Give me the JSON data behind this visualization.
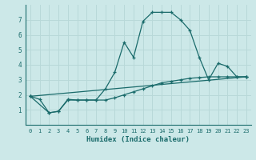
{
  "xlabel": "Humidex (Indice chaleur)",
  "background_color": "#cce8e8",
  "grid_color": "#b8d8d8",
  "line_color": "#1a6b6b",
  "xlim": [
    -0.5,
    23.5
  ],
  "ylim": [
    0,
    8
  ],
  "xtick_labels": [
    "0",
    "1",
    "2",
    "3",
    "4",
    "5",
    "6",
    "7",
    "8",
    "9",
    "10",
    "11",
    "12",
    "13",
    "14",
    "15",
    "16",
    "17",
    "18",
    "19",
    "20",
    "21",
    "22",
    "23"
  ],
  "yticks": [
    1,
    2,
    3,
    4,
    5,
    6,
    7
  ],
  "line1_x": [
    0,
    1,
    2,
    3,
    4,
    5,
    6,
    7,
    8,
    9,
    10,
    11,
    12,
    13,
    14,
    15,
    16,
    17,
    18,
    19,
    20,
    21,
    22,
    23
  ],
  "line1_y": [
    1.9,
    1.7,
    0.8,
    0.9,
    1.7,
    1.65,
    1.65,
    1.65,
    2.4,
    3.5,
    5.5,
    4.5,
    6.9,
    7.5,
    7.5,
    7.5,
    7.0,
    6.3,
    4.5,
    3.0,
    4.1,
    3.9,
    3.2,
    3.2
  ],
  "line2_x": [
    0,
    23
  ],
  "line2_y": [
    1.9,
    3.2
  ],
  "line3_x": [
    0,
    2,
    3,
    4,
    5,
    6,
    7,
    8,
    9,
    10,
    11,
    12,
    13,
    14,
    15,
    16,
    17,
    18,
    19,
    20,
    21,
    22,
    23
  ],
  "line3_y": [
    1.9,
    0.8,
    0.9,
    1.65,
    1.65,
    1.65,
    1.65,
    1.65,
    1.8,
    2.0,
    2.2,
    2.4,
    2.6,
    2.8,
    2.9,
    3.0,
    3.1,
    3.15,
    3.2,
    3.2,
    3.2,
    3.2,
    3.2
  ]
}
